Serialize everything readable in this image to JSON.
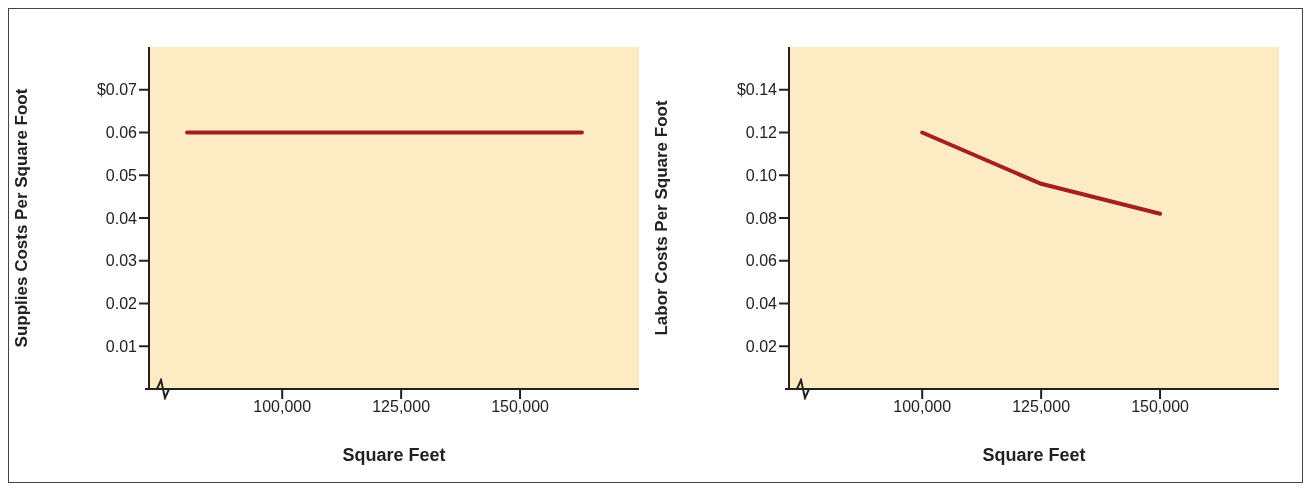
{
  "chart_data": [
    {
      "type": "line",
      "xlabel": "Square Feet",
      "ylabel": "Supplies Costs Per Square Foot",
      "x": [
        80000,
        163000
      ],
      "values": [
        0.06,
        0.06
      ],
      "color": "#a31f24",
      "xlim": [
        72000,
        175000
      ],
      "ylim": [
        0,
        0.08
      ],
      "xticks": [
        {
          "value": 100000,
          "label": "100,000"
        },
        {
          "value": 125000,
          "label": "125,000"
        },
        {
          "value": 150000,
          "label": "150,000"
        }
      ],
      "yticks": [
        0.01,
        0.02,
        0.03,
        0.04,
        0.05,
        0.06,
        {
          "value": 0.07,
          "label": "$0.07"
        }
      ]
    },
    {
      "type": "line",
      "xlabel": "Square Feet",
      "ylabel": "Labor Costs Per Square Foot",
      "x": [
        100000,
        125000,
        150000
      ],
      "values": [
        0.12,
        0.096,
        0.082
      ],
      "color": "#a31f24",
      "xlim": [
        72000,
        175000
      ],
      "ylim": [
        0,
        0.16
      ],
      "xticks": [
        {
          "value": 100000,
          "label": "100,000"
        },
        {
          "value": 125000,
          "label": "125,000"
        },
        {
          "value": 150000,
          "label": "150,000"
        }
      ],
      "yticks": [
        0.02,
        0.04,
        0.06,
        0.08,
        {
          "value": 0.1,
          "label": "0.10"
        },
        0.12,
        {
          "value": 0.14,
          "label": "$0.14"
        }
      ]
    }
  ]
}
